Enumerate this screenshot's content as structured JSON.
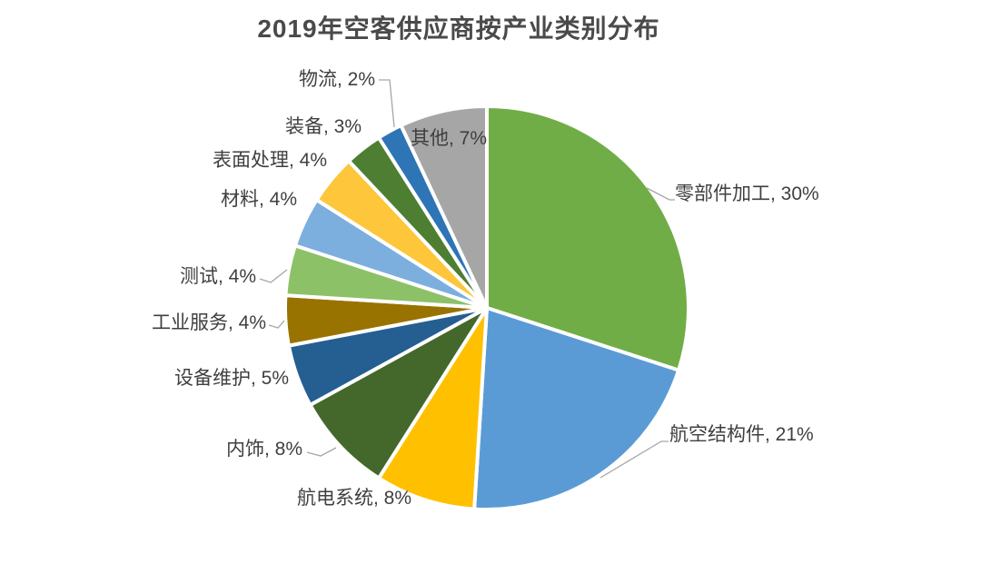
{
  "chart_data": {
    "type": "pie",
    "title": "2019年空客供应商按产业类别分布",
    "start_angle_deg": 0,
    "direction": "clockwise",
    "legend_position": "none",
    "label_format": "category, value%",
    "background_color": "#FFFFFF",
    "separator_color": "#FFFFFF",
    "label_text_color": "#3F3F3F",
    "title_text_color": "#4A4A4A",
    "leader_line_color": "#A6A6A6",
    "slices": [
      {
        "id": "parts-machining",
        "name": "零部件加工",
        "value": 30,
        "label": "零部件加工, 30%",
        "color": "#70AD47"
      },
      {
        "id": "aerostructures",
        "name": "航空结构件",
        "value": 21,
        "label": "航空结构件, 21%",
        "color": "#5B9BD5"
      },
      {
        "id": "avionics",
        "name": "航电系统",
        "value": 8,
        "label": "航电系统, 8%",
        "color": "#FFC000"
      },
      {
        "id": "interiors",
        "name": "内饰",
        "value": 8,
        "label": "内饰, 8%",
        "color": "#44682B"
      },
      {
        "id": "equipment-maintenance",
        "name": "设备维护",
        "value": 5,
        "label": "设备维护, 5%",
        "color": "#255E91"
      },
      {
        "id": "industrial-services",
        "name": "工业服务",
        "value": 4,
        "label": "工业服务, 4%",
        "color": "#997300"
      },
      {
        "id": "testing",
        "name": "测试",
        "value": 4,
        "label": "测试, 4%",
        "color": "#8DC168"
      },
      {
        "id": "materials",
        "name": "材料",
        "value": 4,
        "label": "材料, 4%",
        "color": "#7CAFDD"
      },
      {
        "id": "surface-treatment",
        "name": "表面处理",
        "value": 4,
        "label": "表面处理, 4%",
        "color": "#FDC63B"
      },
      {
        "id": "equipment",
        "name": "装备",
        "value": 3,
        "label": "装备, 3%",
        "color": "#4E7E32"
      },
      {
        "id": "logistics",
        "name": "物流",
        "value": 2,
        "label": "物流, 2%",
        "color": "#2E75B6"
      },
      {
        "id": "other",
        "name": "其他",
        "value": 7,
        "label": "其他, 7%",
        "color": "#A6A6A6"
      }
    ]
  }
}
